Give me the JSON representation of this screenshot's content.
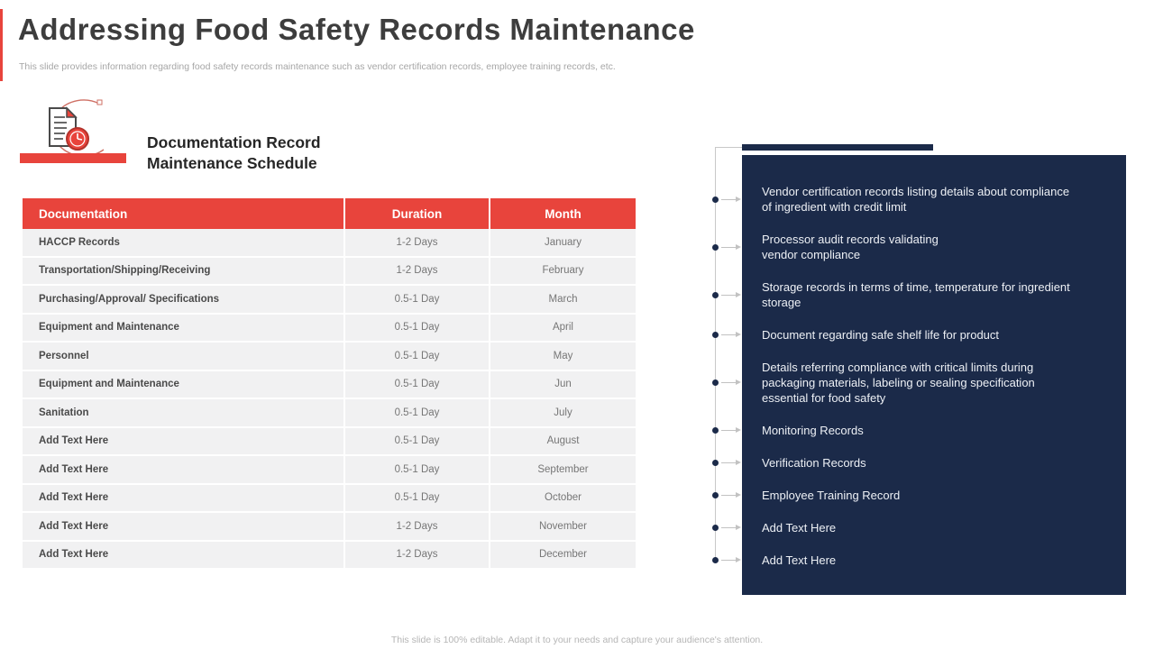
{
  "slide": {
    "title": "Addressing Food Safety Records Maintenance",
    "subtitle": "This slide provides information regarding food safety records maintenance such as vendor certification records, employee training records, etc.",
    "footer": "This slide is 100% editable.  Adapt it to your needs and capture your audience's attention."
  },
  "schedule": {
    "heading_line1": "Documentation Record",
    "heading_line2": "Maintenance Schedule",
    "columns": [
      "Documentation",
      "Duration",
      "Month"
    ],
    "rows": [
      {
        "doc": "HACCP Records",
        "duration": "1-2 Days",
        "month": "January"
      },
      {
        "doc": "Transportation/Shipping/Receiving",
        "duration": "1-2 Days",
        "month": "February"
      },
      {
        "doc": "Purchasing/Approval/ Specifications",
        "duration": "0.5-1 Day",
        "month": "March"
      },
      {
        "doc": "Equipment and Maintenance",
        "duration": "0.5-1 Day",
        "month": "April"
      },
      {
        "doc": "Personnel",
        "duration": "0.5-1 Day",
        "month": "May"
      },
      {
        "doc": "Equipment and Maintenance",
        "duration": "0.5-1 Day",
        "month": "Jun"
      },
      {
        "doc": "Sanitation",
        "duration": "0.5-1 Day",
        "month": "July"
      },
      {
        "doc": "Add Text Here",
        "duration": "0.5-1 Day",
        "month": "August"
      },
      {
        "doc": "Add Text Here",
        "duration": "0.5-1 Day",
        "month": "September"
      },
      {
        "doc": "Add Text Here",
        "duration": "0.5-1 Day",
        "month": "October"
      },
      {
        "doc": "Add Text Here",
        "duration": "1-2 Days",
        "month": "November"
      },
      {
        "doc": "Add Text Here",
        "duration": "1-2 Days",
        "month": "December"
      }
    ]
  },
  "records_panel": {
    "items": [
      "Vendor certification records listing details about compliance\nof ingredient with credit limit",
      "Processor audit records validating\nvendor compliance",
      "Storage records in terms of time, temperature for ingredient\nstorage",
      "Document regarding safe shelf life for product",
      "Details referring compliance with critical limits during\npackaging materials, labeling or sealing specification\nessential for food safety",
      "Monitoring Records",
      "Verification Records",
      "Employee Training Record",
      "Add Text Here",
      "Add Text Here"
    ]
  },
  "icons": {
    "document_clock": "document-with-clock-icon"
  },
  "colors": {
    "accent_red": "#e8443c",
    "navy": "#1b2a49"
  }
}
